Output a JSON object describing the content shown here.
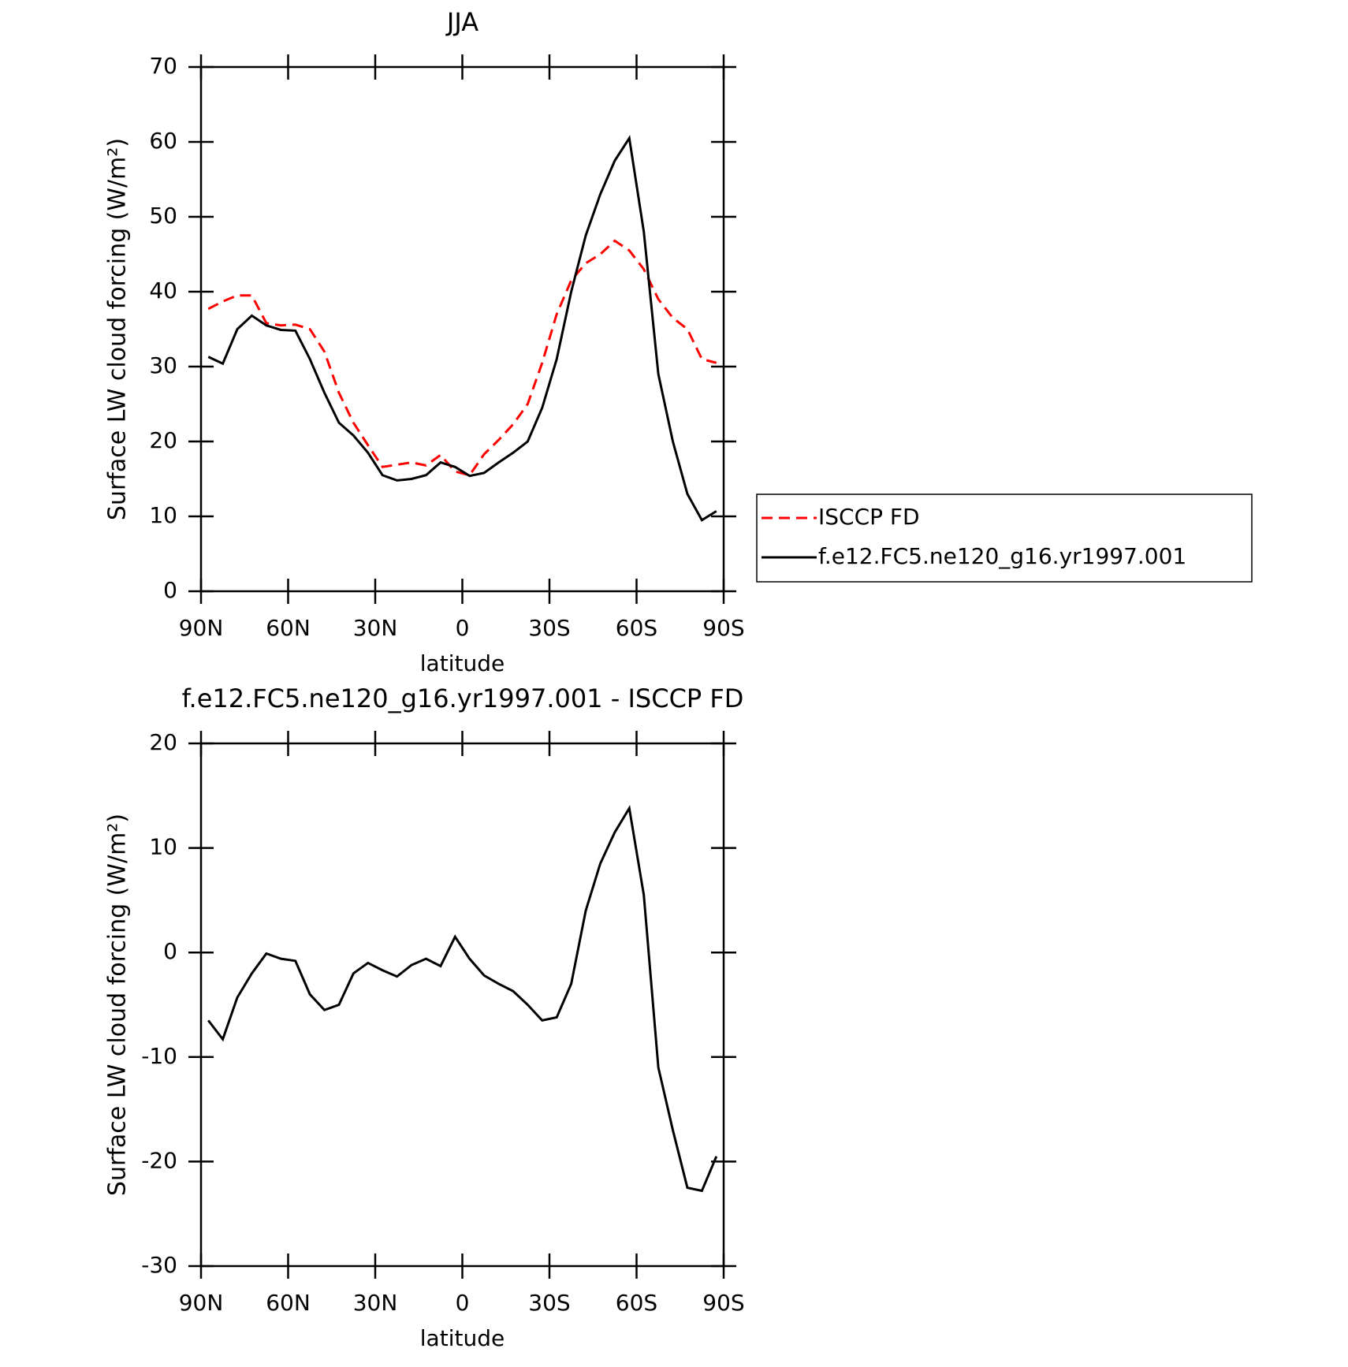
{
  "chart_data": [
    {
      "type": "line",
      "title": "JJA",
      "xlabel": "latitude",
      "ylabel": "Surface LW cloud forcing (W/m²)",
      "x": [
        87.5,
        82.5,
        77.5,
        72.5,
        67.5,
        62.5,
        57.5,
        52.5,
        47.5,
        42.5,
        37.5,
        32.5,
        27.5,
        22.5,
        17.5,
        12.5,
        7.5,
        2.5,
        -2.5,
        -7.5,
        -12.5,
        -17.5,
        -22.5,
        -27.5,
        -32.5,
        -37.5,
        -42.5,
        -47.5,
        -52.5,
        -57.5,
        -62.5,
        -67.5,
        -72.5,
        -77.5,
        -82.5,
        -87.5
      ],
      "series": [
        {
          "name": "ISCCP FD",
          "color": "#ff0000",
          "style": "dashed",
          "values": [
            37.7,
            38.7,
            39.5,
            39.5,
            35.8,
            35.5,
            35.6,
            35,
            32,
            26.5,
            22.5,
            19.5,
            16.6,
            16.9,
            17.2,
            16.8,
            18.2,
            16,
            15.5,
            18.3,
            20.2,
            22.3,
            25,
            30.5,
            37,
            41.5,
            43.8,
            45,
            46.8,
            45.5,
            43,
            39,
            36.5,
            35,
            31,
            30.5
          ]
        },
        {
          "name": "f.e12.FC5.ne120_g16.yr1997.001",
          "color": "#000000",
          "style": "solid",
          "values": [
            31.3,
            30.4,
            35,
            36.8,
            35.5,
            34.9,
            34.8,
            31,
            26.5,
            22.5,
            20.8,
            18.5,
            15.5,
            14.8,
            15,
            15.5,
            17.2,
            16.6,
            15.4,
            15.8,
            17.2,
            18.5,
            20,
            24.5,
            31,
            40,
            47.5,
            53,
            57.5,
            60.5,
            48,
            29,
            20,
            13,
            9.5,
            10.7
          ]
        }
      ],
      "xlim": [
        90,
        -90
      ],
      "xticks": [
        {
          "value": 90,
          "label": "90N"
        },
        {
          "value": 60,
          "label": "60N"
        },
        {
          "value": 30,
          "label": "30N"
        },
        0,
        {
          "value": -30,
          "label": "30S"
        },
        {
          "value": -60,
          "label": "60S"
        },
        {
          "value": -90,
          "label": "90S"
        }
      ],
      "ylim": [
        0,
        70
      ],
      "yticks": [
        0,
        10,
        20,
        30,
        40,
        50,
        60,
        70
      ],
      "legend": "right"
    },
    {
      "type": "line",
      "title": "f.e12.FC5.ne120_g16.yr1997.001 - ISCCP FD",
      "xlabel": "latitude",
      "ylabel": "Surface LW cloud forcing (W/m²)",
      "x": [
        87.5,
        82.5,
        77.5,
        72.5,
        67.5,
        62.5,
        57.5,
        52.5,
        47.5,
        42.5,
        37.5,
        32.5,
        27.5,
        22.5,
        17.5,
        12.5,
        7.5,
        2.5,
        -2.5,
        -7.5,
        -12.5,
        -17.5,
        -22.5,
        -27.5,
        -32.5,
        -37.5,
        -42.5,
        -47.5,
        -52.5,
        -57.5,
        -62.5,
        -67.5,
        -72.5,
        -77.5,
        -82.5,
        -87.5
      ],
      "series": [
        {
          "color": "#000000",
          "style": "solid",
          "values": [
            -6.5,
            -8.3,
            -4.3,
            -2,
            -0.1,
            -0.6,
            -0.8,
            -4,
            -5.5,
            -5,
            -2,
            -1,
            -1.7,
            -2.3,
            -1.2,
            -0.6,
            -1.3,
            1.5,
            -0.6,
            -2.2,
            -3,
            -3.7,
            -5,
            -6.5,
            -6.2,
            -3,
            4,
            8.5,
            11.5,
            13.8,
            5.5,
            -11,
            -17,
            -22.5,
            -22.8,
            -19.5
          ]
        }
      ],
      "xlim": [
        90,
        -90
      ],
      "xticks": [
        {
          "value": 90,
          "label": "90N"
        },
        {
          "value": 60,
          "label": "60N"
        },
        {
          "value": 30,
          "label": "30N"
        },
        0,
        {
          "value": -30,
          "label": "30S"
        },
        {
          "value": -60,
          "label": "60S"
        },
        {
          "value": -90,
          "label": "90S"
        }
      ],
      "ylim": [
        -30,
        20
      ],
      "yticks": [
        -30,
        -20,
        -10,
        0,
        10,
        20
      ]
    }
  ]
}
